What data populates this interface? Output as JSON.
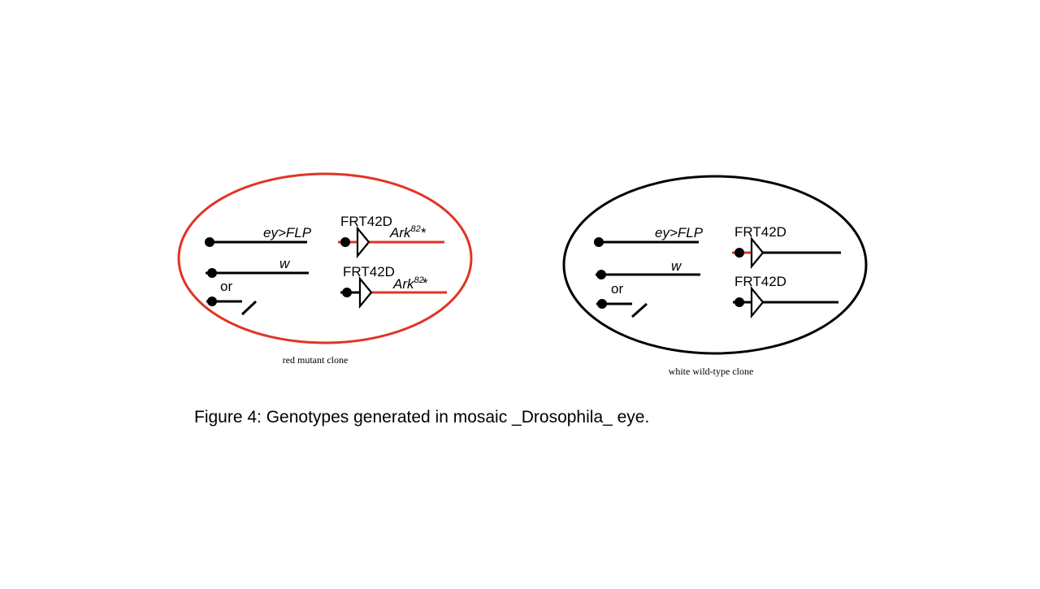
{
  "colors": {
    "mutant": "#e03524",
    "wildtype": "#000000"
  },
  "red_clone": {
    "label": "red mutant clone",
    "chr_eyflp": "ey>FLP",
    "chr_w": "w",
    "or_text": "or",
    "frt_top": "FRT42D",
    "frt_bottom": "FRT42D",
    "ark_top": "Ark",
    "ark_top_sup": "82",
    "ark_top_mark": "*",
    "ark_bottom": "Ark",
    "ark_bottom_sup": "82",
    "ark_bottom_mark": "*"
  },
  "white_clone": {
    "label": "white wild-type clone",
    "chr_eyflp": "ey>FLP",
    "chr_w": "w",
    "or_text": "or",
    "frt_top": "FRT42D",
    "frt_bottom": "FRT42D"
  },
  "caption": "Figure 4: Genotypes generated in mosaic _Drosophila_ eye."
}
